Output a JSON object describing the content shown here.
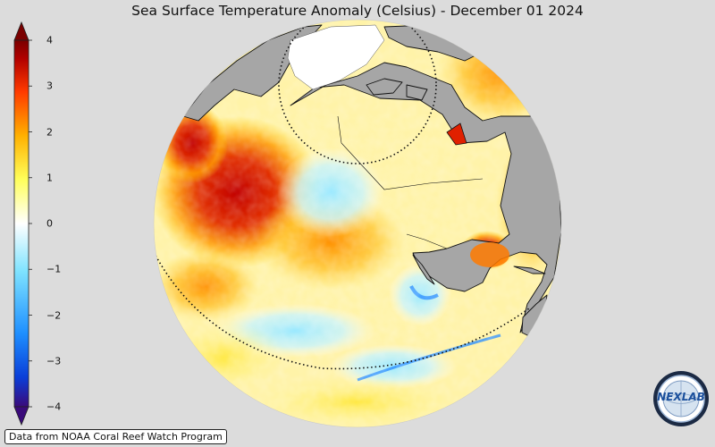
{
  "title": "Sea Surface Temperature Anomaly (Celsius) - December 01 2024",
  "colorbar": {
    "ticks": [
      "4",
      "3",
      "2",
      "1",
      "0",
      "−1",
      "−2",
      "−3",
      "−4"
    ],
    "min": -4,
    "max": 4,
    "colors": [
      "#3a0a7a",
      "#0a3ed8",
      "#1e8fff",
      "#7fe3ff",
      "#ffffff",
      "#ffff5a",
      "#ffb000",
      "#ff3a00",
      "#b10000",
      "#7a0000"
    ]
  },
  "credit": "Data from NOAA Coral Reef Watch Program",
  "logo": {
    "text": "NEXLAB",
    "icon": "nexlab-globe-logo"
  },
  "map": {
    "projection": "orthographic",
    "land_color": "#a6a6a6",
    "ice_color": "#ffffff",
    "reference_lines": [
      "arctic-circle",
      "equator"
    ]
  }
}
